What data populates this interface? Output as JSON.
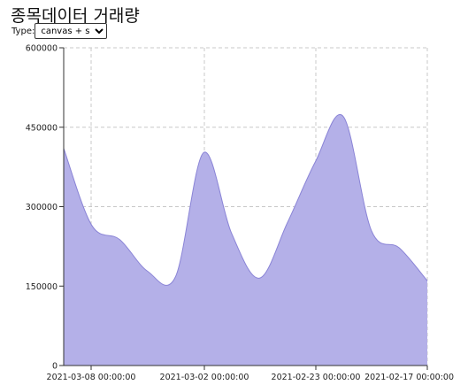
{
  "header": {
    "title": "종목데이터 거래량",
    "type_label": "Type:",
    "type_selected": "canvas + svg"
  },
  "chart_data": {
    "type": "area",
    "title": "종목데이터 거래량",
    "xlabel": "",
    "ylabel": "",
    "ylim": [
      0,
      600000
    ],
    "y_ticks": [
      0,
      150000,
      300000,
      450000,
      600000
    ],
    "x_tick_labels": [
      "2021-03-08 00:00:00",
      "2021-03-02 00:00:00",
      "2021-02-23 00:00:00",
      "2021-02-17 00:00:00"
    ],
    "grid": true,
    "fill_color": "#b4b0e8",
    "line_color": "#8a84d6",
    "values": [
      410000,
      265000,
      238000,
      178000,
      168000,
      402000,
      250000,
      165000,
      270000,
      385000,
      470000,
      255000,
      222000,
      160000
    ]
  }
}
